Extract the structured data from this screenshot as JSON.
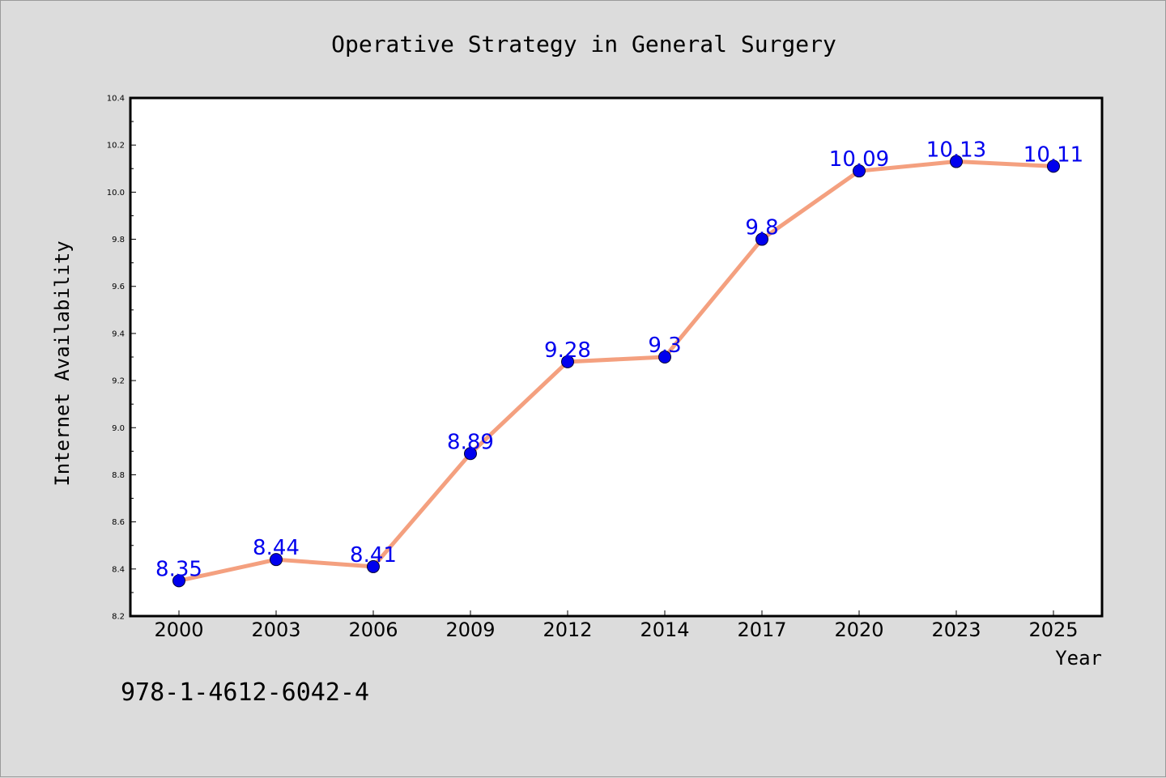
{
  "colors": {
    "background": "#dcdcdc",
    "plot_background": "#ffffff",
    "line": "#f4a07f",
    "marker": "#0000ee",
    "data_label": "#0000ee",
    "axis": "#000000"
  },
  "footnote": "978-1-4612-6042-4",
  "chart_data": {
    "type": "line",
    "title": "Operative Strategy in General Surgery",
    "xlabel": "Year",
    "ylabel": "Internet Availability",
    "categories": [
      "2000",
      "2003",
      "2006",
      "2009",
      "2012",
      "2014",
      "2017",
      "2020",
      "2023",
      "2025"
    ],
    "series": [
      {
        "values": [
          8.35,
          8.44,
          8.41,
          8.89,
          9.28,
          9.3,
          9.8,
          10.09,
          10.13,
          10.11
        ],
        "data_labels": [
          "8.35",
          "8.44",
          "8.41",
          "8.89",
          "9.28",
          "9.3",
          "9.8",
          "10.09",
          "10.13",
          "10.11"
        ]
      }
    ],
    "ylim": [
      8.2,
      10.4
    ],
    "yticks": [
      8.2,
      8.4,
      8.6,
      8.8,
      9.0,
      9.2,
      9.4,
      9.6,
      9.8,
      10.0,
      10.2,
      10.4
    ],
    "ytick_labels": [
      "8.2",
      "8.4",
      "8.6",
      "8.8",
      "9.0",
      "9.2",
      "9.4",
      "9.6",
      "9.8",
      "10.0",
      "10.2",
      "10.4"
    ],
    "grid": false,
    "legend": "none"
  }
}
